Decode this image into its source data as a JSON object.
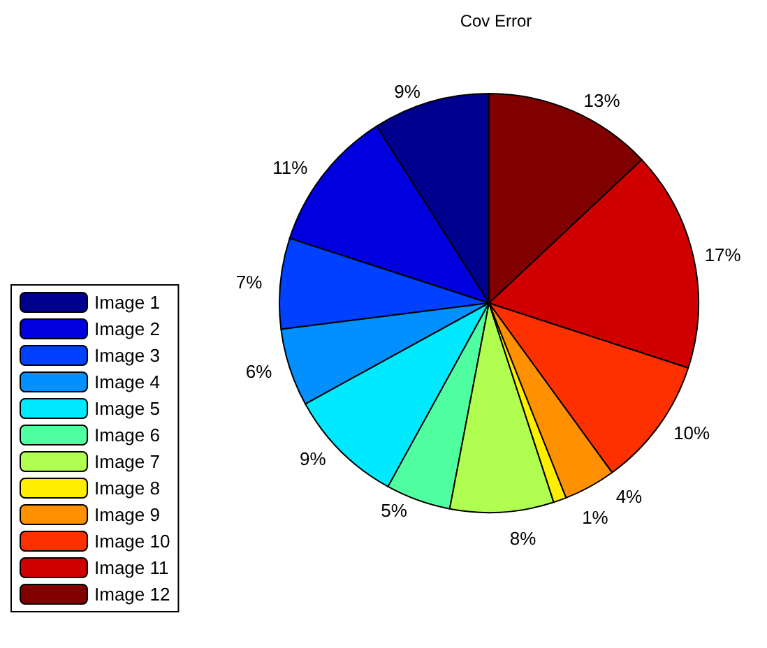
{
  "chart_data": {
    "type": "pie",
    "title": "Cov Error",
    "categories": [
      "Image 1",
      "Image 2",
      "Image 3",
      "Image 4",
      "Image 5",
      "Image 6",
      "Image 7",
      "Image 8",
      "Image 9",
      "Image 10",
      "Image 11",
      "Image 12"
    ],
    "values": [
      9,
      11,
      7,
      6,
      9,
      5,
      8,
      1,
      4,
      10,
      17,
      13
    ],
    "value_labels": [
      "9%",
      "11%",
      "7%",
      "6%",
      "9%",
      "5%",
      "8%",
      "1%",
      "4%",
      "10%",
      "17%",
      "13%"
    ],
    "colors": [
      "#00008f",
      "#0000df",
      "#0040ff",
      "#0090ff",
      "#00eaff",
      "#50ffa0",
      "#b0ff50",
      "#ffee00",
      "#ff9000",
      "#ff3000",
      "#d00000",
      "#800000"
    ],
    "legend": "left"
  }
}
